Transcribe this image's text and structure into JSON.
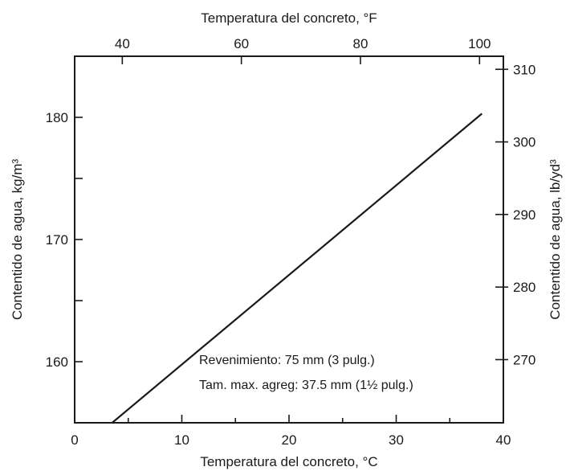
{
  "chart_data": {
    "type": "line",
    "title": "",
    "xlabel": "Temperatura del concreto, °C",
    "ylabel": "Contentido de agua, kg/m³",
    "x2label": "Temperatura del concreto, °F",
    "y2label": "Contentido de agua, lb/yd³",
    "xlim": [
      0,
      40
    ],
    "ylim": [
      155,
      185
    ],
    "x2lim": [
      32,
      104
    ],
    "y2lim": [
      261.3,
      311.8
    ],
    "xticks": [
      0,
      10,
      20,
      30,
      40
    ],
    "yticks": [
      160,
      170,
      180
    ],
    "x2ticks": [
      40,
      60,
      80,
      100
    ],
    "y2ticks": [
      270,
      280,
      290,
      300,
      310
    ],
    "grid": false,
    "series": [
      {
        "x": [
          3.5,
          38
        ],
        "y": [
          155,
          180.3
        ]
      }
    ],
    "annotations": [
      "Revenimiento: 75 mm (3 pulg.)",
      "Tam. max. agreg: 37.5 mm (1½ pulg.)"
    ]
  }
}
